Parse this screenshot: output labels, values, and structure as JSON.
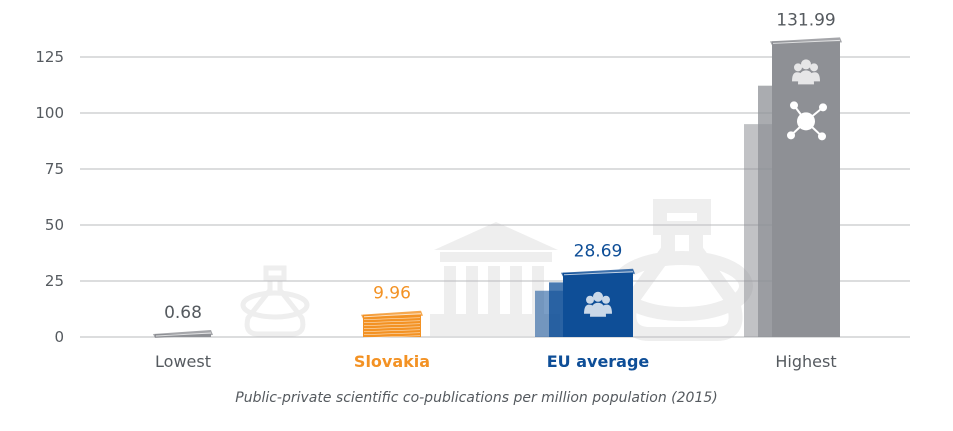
{
  "chart_data": {
    "type": "bar",
    "categories": [
      "Lowest",
      "Slovakia",
      "EU average",
      "Highest"
    ],
    "values": [
      0.68,
      9.96,
      28.69,
      131.99
    ],
    "value_labels": [
      "0.68",
      "9.96",
      "28.69",
      "131.99"
    ],
    "title": "",
    "xlabel": "Public-private scientific co-publications per million population (2015)",
    "ylabel": "",
    "yticks": [
      0,
      25,
      50,
      75,
      100,
      125
    ],
    "ylim": [
      0,
      132
    ],
    "grid": true,
    "legend": "none",
    "colors": {
      "Lowest": "#8e9095",
      "Slovakia": "#f39224",
      "EU average": "#0e4e97",
      "Highest": "#8e9095",
      "label_default": "#555a5f",
      "grid": "#b9bbbe",
      "watermark": "#eeeeee"
    },
    "icons": {
      "EU average": [
        "people-icon"
      ],
      "Highest": [
        "people-icon",
        "network-icon"
      ]
    }
  }
}
